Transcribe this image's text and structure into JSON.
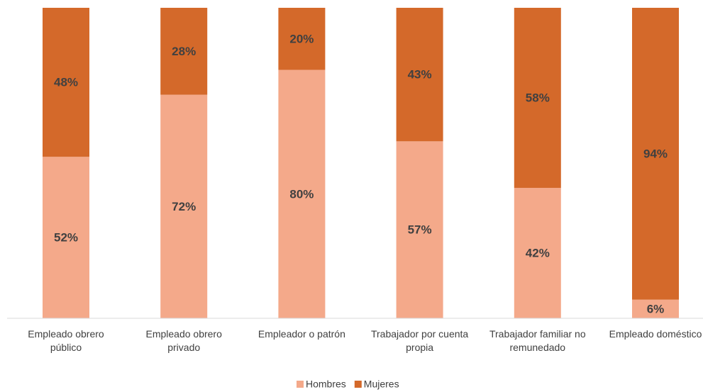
{
  "chart_data": {
    "type": "bar",
    "stacked": true,
    "categories": [
      "Empleado obrero público",
      "Empleado obrero privado",
      "Empleador o patrón",
      "Trabajador por cuenta propia",
      "Trabajador familiar no remunedado",
      "Empleado doméstico"
    ],
    "series": [
      {
        "name": "Hombres",
        "color": "#f4a98a",
        "values": [
          52,
          72,
          80,
          57,
          42,
          6
        ],
        "value_labels": [
          "52%",
          "72%",
          "80%",
          "57%",
          "42%",
          "6%"
        ]
      },
      {
        "name": "Mujeres",
        "color": "#d4692a",
        "values": [
          48,
          28,
          20,
          43,
          58,
          94
        ],
        "value_labels": [
          "48%",
          "28%",
          "20%",
          "43%",
          "58%",
          "94%"
        ]
      }
    ],
    "ylim": [
      0,
      100
    ],
    "legend": "bottom"
  }
}
